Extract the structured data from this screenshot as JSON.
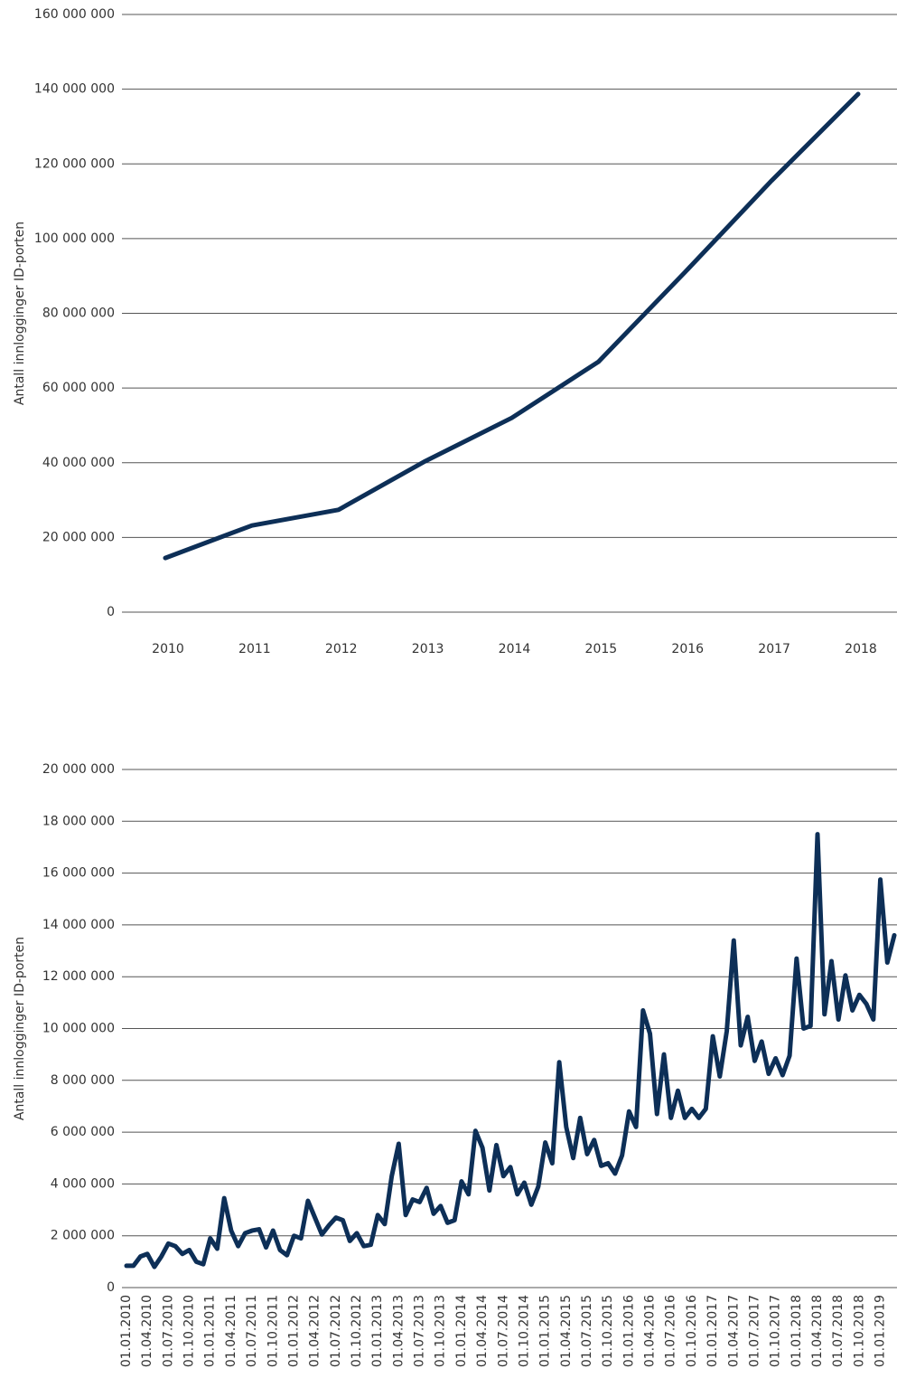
{
  "chart_data": [
    {
      "type": "line",
      "ylabel": "Antall innlogginger ID-porten",
      "categories": [
        "2010",
        "2011",
        "2012",
        "2013",
        "2014",
        "2015",
        "2016",
        "2017",
        "2018"
      ],
      "series": [
        {
          "name": null,
          "color": "#0d2f57",
          "values": [
            14500000,
            23200000,
            27400000,
            40400000,
            52000000,
            67000000,
            91000000,
            115500000,
            138700000
          ]
        }
      ],
      "ylim": [
        0,
        160000000
      ],
      "yticks": [
        0,
        {
          "value": 20000000,
          "label": "20 000 000"
        },
        {
          "value": 40000000,
          "label": "40 000 000"
        },
        {
          "value": 60000000,
          "label": "60 000 000"
        },
        {
          "value": 80000000,
          "label": "80 000 000"
        },
        {
          "value": 100000000,
          "label": "100 000 000"
        },
        {
          "value": 120000000,
          "label": "120 000 000"
        },
        {
          "value": 140000000,
          "label": "140 000 000"
        },
        {
          "value": 160000000,
          "label": "160 000 000"
        }
      ],
      "grid": true
    },
    {
      "type": "line",
      "ylabel": "Antall innlogginger ID-porten",
      "categories": [
        "01.01.2010",
        null,
        null,
        "01.04.2010",
        null,
        null,
        "01.07.2010",
        null,
        null,
        "01.10.2010",
        null,
        null,
        "01.01.2011",
        null,
        null,
        "01.04.2011",
        null,
        null,
        "01.07.2011",
        null,
        null,
        "01.10.2011",
        null,
        null,
        "01.01.2012",
        null,
        null,
        "01.04.2012",
        null,
        null,
        "01.07.2012",
        null,
        null,
        "01.10.2012",
        null,
        null,
        "01.01.2013",
        null,
        null,
        "01.04.2013",
        null,
        null,
        "01.07.2013",
        null,
        null,
        "01.10.2013",
        null,
        null,
        "01.01.2014",
        null,
        null,
        "01.04.2014",
        null,
        null,
        "01.07.2014",
        null,
        null,
        "01.10.2014",
        null,
        null,
        "01.01.2015",
        null,
        null,
        "01.04.2015",
        null,
        null,
        "01.07.2015",
        null,
        null,
        "01.10.2015",
        null,
        null,
        "01.01.2016",
        null,
        null,
        "01.04.2016",
        null,
        null,
        "01.07.2016",
        null,
        null,
        "01.10.2016",
        null,
        null,
        "01.01.2017",
        null,
        null,
        "01.04.2017",
        null,
        null,
        "01.07.2017",
        null,
        null,
        "01.10.2017",
        null,
        null,
        "01.01.2018",
        null,
        null,
        "01.04.2018",
        null,
        null,
        "01.07.2018",
        null,
        null,
        "01.10.2018",
        null,
        null,
        "01.01.2019",
        null,
        null
      ],
      "series": [
        {
          "name": null,
          "color": "#0d2f57",
          "values": [
            840000,
            840000,
            1200000,
            1300000,
            800000,
            1200000,
            1700000,
            1600000,
            1300000,
            1450000,
            1000000,
            900000,
            1900000,
            1500000,
            3450000,
            2200000,
            1600000,
            2100000,
            2200000,
            2250000,
            1550000,
            2200000,
            1450000,
            1250000,
            2000000,
            1900000,
            3350000,
            2700000,
            2050000,
            2400000,
            2700000,
            2600000,
            1800000,
            2100000,
            1600000,
            1650000,
            2800000,
            2450000,
            4300000,
            5550000,
            2800000,
            3400000,
            3300000,
            3850000,
            2850000,
            3150000,
            2500000,
            2600000,
            4100000,
            3600000,
            6050000,
            5400000,
            3750000,
            5500000,
            4300000,
            4650000,
            3600000,
            4050000,
            3200000,
            3900000,
            5600000,
            4800000,
            8700000,
            6200000,
            5000000,
            6550000,
            5150000,
            5700000,
            4700000,
            4800000,
            4400000,
            5100000,
            6800000,
            6200000,
            10700000,
            9800000,
            6700000,
            9000000,
            6550000,
            7600000,
            6550000,
            6900000,
            6550000,
            6900000,
            9700000,
            8150000,
            9900000,
            13400000,
            9350000,
            10450000,
            8750000,
            9500000,
            8250000,
            8850000,
            8200000,
            8950000,
            12700000,
            10000000,
            10100000,
            17500000,
            10550000,
            12600000,
            10350000,
            12050000,
            10700000,
            11300000,
            10950000,
            10350000,
            15750000,
            12550000,
            13600000
          ]
        }
      ],
      "ylim": [
        0,
        20000000
      ],
      "yticks": [
        0,
        {
          "value": 2000000,
          "label": "2 000 000"
        },
        {
          "value": 4000000,
          "label": "4 000 000"
        },
        {
          "value": 6000000,
          "label": "6 000 000"
        },
        {
          "value": 8000000,
          "label": "8 000 000"
        },
        {
          "value": 10000000,
          "label": "10 000 000"
        },
        {
          "value": 12000000,
          "label": "12 000 000"
        },
        {
          "value": 14000000,
          "label": "14 000 000"
        },
        {
          "value": 16000000,
          "label": "16 000 000"
        },
        {
          "value": 18000000,
          "label": "18 000 000"
        },
        {
          "value": 20000000,
          "label": "20 000 000"
        }
      ],
      "grid": true
    }
  ]
}
